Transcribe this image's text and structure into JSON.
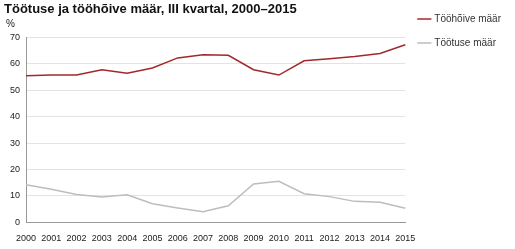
{
  "chart_data": {
    "type": "line",
    "title": "Töötuse ja tööhõive määr, III kvartal, 2000–2015",
    "y_label": "%",
    "categories": [
      "2000",
      "2001",
      "2002",
      "2003",
      "2004",
      "2005",
      "2006",
      "2007",
      "2008",
      "2009",
      "2010",
      "2011",
      "2012",
      "2013",
      "2014",
      "2015"
    ],
    "series": [
      {
        "name": "Tööhõive määr",
        "color": "#a3282b",
        "values": [
          55.5,
          55.8,
          55.8,
          57.8,
          56.5,
          58.5,
          62.3,
          63.5,
          63.3,
          57.8,
          55.8,
          61.2,
          62.0,
          62.8,
          64.0,
          67.3
        ]
      },
      {
        "name": "Töötuse määr",
        "color": "#bdbdbd",
        "values": [
          14.2,
          12.5,
          10.5,
          9.6,
          10.4,
          7.0,
          5.4,
          4.0,
          6.2,
          14.5,
          15.5,
          10.8,
          9.7,
          7.9,
          7.6,
          5.3
        ]
      }
    ],
    "ylim": [
      0,
      70
    ],
    "yticks": [
      0,
      10,
      20,
      30,
      40,
      50,
      60,
      70
    ],
    "grid": true,
    "legend": "top-right",
    "marker": "none"
  }
}
